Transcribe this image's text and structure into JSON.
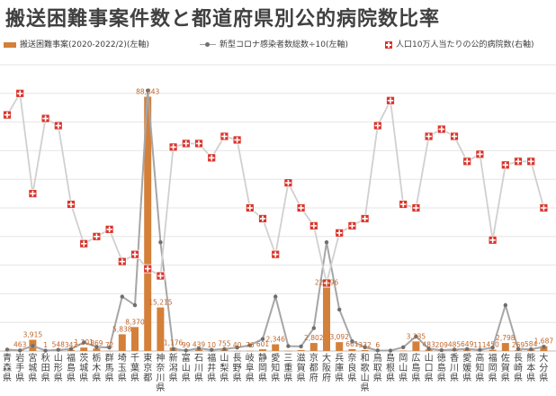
{
  "title": "搬送困難事案件数と都道府県別公的病院数比率",
  "legend": {
    "bar": "搬送困難事案(2020-2022/2)(左軸)",
    "line": "新型コロナ感染者数総数÷10(左軸)",
    "marker": "人口10万人当たりの公的病院数(右軸)"
  },
  "colors": {
    "bar": "#d4803a",
    "line": "#a6a6a6",
    "marker": "#d9342b"
  },
  "chart_data": {
    "type": "bar",
    "title": "搬送困難事案件数と都道府県別公的病院数比率",
    "categories": [
      "青森県",
      "岩手県",
      "宮城県",
      "秋田県",
      "山形県",
      "福島県",
      "茨城県",
      "栃木県",
      "群馬県",
      "埼玉県",
      "千葉県",
      "東京都",
      "神奈川県",
      "新潟県",
      "富山県",
      "石川県",
      "福井県",
      "山梨県",
      "長野県",
      "岐阜県",
      "静岡県",
      "愛知県",
      "三重県",
      "滋賀県",
      "京都府",
      "大阪府",
      "兵庫県",
      "奈良県",
      "和歌山県",
      "鳥取県",
      "島根県",
      "岡山県",
      "広島県",
      "山口県",
      "徳島県",
      "香川県",
      "愛媛県",
      "高知県",
      "福岡県",
      "佐賀県",
      "長崎県",
      "熊本県",
      "大分県"
    ],
    "series": [
      {
        "name": "搬送困難事案(2020-2022/2)(左軸)",
        "type": "bar",
        "axis": "left",
        "values": [
          88,
          463,
          3915,
          1,
          548,
          342,
          1201,
          869,
          72,
          5838,
          8370,
          88843,
          15215,
          1176,
          99,
          439,
          10,
          755,
          40,
          76,
          601,
          2346,
          81,
          322,
          2802,
          22196,
          3092,
          661,
          332,
          6,
          200,
          150,
          3335,
          483,
          209,
          485,
          649,
          111,
          450,
          2798,
          269,
          584,
          1687
        ],
        "labels": [
          "",
          "463",
          "3,915",
          "1",
          "548",
          "342",
          "1,201",
          "869",
          "72",
          "5,838",
          "8,370",
          "88,843",
          "15,215",
          "1,176",
          "99",
          "439",
          "10",
          "755",
          "40",
          "76",
          "601",
          "2,346",
          "",
          "",
          "2,802",
          "22,196",
          "3,092",
          "661",
          "332",
          "6",
          "",
          "",
          "3,335",
          "483",
          "209",
          "485",
          "649",
          "111",
          "450",
          "2,798",
          "269",
          "584",
          "1,687"
        ]
      },
      {
        "name": "新型コロナ感染者数総数÷10(左軸)",
        "type": "line",
        "axis": "left",
        "values": [
          500,
          200,
          1800,
          150,
          400,
          700,
          3000,
          1400,
          1200,
          19000,
          16000,
          91000,
          38000,
          700,
          200,
          900,
          400,
          700,
          1200,
          2000,
          4200,
          19000,
          1700,
          1600,
          8000,
          38000,
          14500,
          3400,
          1300,
          200,
          150,
          1300,
          5100,
          800,
          300,
          500,
          700,
          400,
          1200,
          16000,
          700,
          600,
          1500
        ]
      },
      {
        "name": "人口10万人当たりの公的病院数(右軸)",
        "type": "marker",
        "axis": "right",
        "values": [
          6.6,
          7.2,
          4.4,
          6.5,
          6.3,
          4.1,
          3.0,
          3.2,
          3.4,
          2.5,
          2.7,
          2.3,
          2.1,
          5.7,
          5.8,
          5.8,
          5.4,
          6.0,
          5.9,
          4.0,
          3.7,
          2.7,
          4.7,
          4.0,
          3.5,
          1.9,
          3.3,
          3.5,
          3.7,
          6.3,
          7.0,
          4.1,
          4.0,
          6.0,
          6.2,
          6.0,
          5.3,
          5.5,
          3.1,
          5.2,
          5.3,
          5.3,
          4.0
        ]
      }
    ],
    "ylim_left": [
      0,
      100000
    ],
    "ylim_right": [
      0,
      8
    ],
    "grid": true,
    "legend_position": "top"
  }
}
